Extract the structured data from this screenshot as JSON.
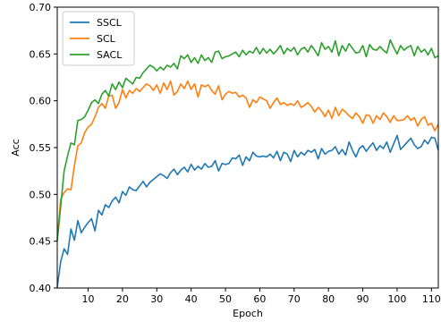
{
  "chart_data": {
    "type": "line",
    "title": "",
    "xlabel": "Epoch",
    "ylabel": "Acc",
    "xlim": [
      1,
      112
    ],
    "ylim": [
      0.4,
      0.7
    ],
    "xticks": [
      10,
      20,
      30,
      40,
      50,
      60,
      70,
      80,
      90,
      100,
      110
    ],
    "xtick_labels": [
      "10",
      "20",
      "30",
      "40",
      "50",
      "60",
      "70",
      "80",
      "90",
      "100",
      "110"
    ],
    "yticks": [
      0.4,
      0.45,
      0.5,
      0.55,
      0.6,
      0.65,
      0.7
    ],
    "ytick_labels": [
      "0.40",
      "0.45",
      "0.50",
      "0.55",
      "0.60",
      "0.65",
      "0.70"
    ],
    "grid": false,
    "legend_position": "top-left",
    "colors": {
      "SSCL": "#1f77b4",
      "SCL": "#ff7f0e",
      "SACL": "#2ca02c"
    },
    "x": [
      1,
      2,
      3,
      4,
      5,
      6,
      7,
      8,
      9,
      10,
      11,
      12,
      13,
      14,
      15,
      16,
      17,
      18,
      19,
      20,
      21,
      22,
      23,
      24,
      25,
      26,
      27,
      28,
      29,
      30,
      31,
      32,
      33,
      34,
      35,
      36,
      37,
      38,
      39,
      40,
      41,
      42,
      43,
      44,
      45,
      46,
      47,
      48,
      49,
      50,
      51,
      52,
      53,
      54,
      55,
      56,
      57,
      58,
      59,
      60,
      61,
      62,
      63,
      64,
      65,
      66,
      67,
      68,
      69,
      70,
      71,
      72,
      73,
      74,
      75,
      76,
      77,
      78,
      79,
      80,
      81,
      82,
      83,
      84,
      85,
      86,
      87,
      88,
      89,
      90,
      91,
      92,
      93,
      94,
      95,
      96,
      97,
      98,
      99,
      100,
      101,
      102,
      103,
      104,
      105,
      106,
      107,
      108,
      109,
      110,
      111,
      112
    ],
    "series": [
      {
        "name": "SSCL",
        "values": [
          0.401,
          0.428,
          0.442,
          0.436,
          0.463,
          0.451,
          0.472,
          0.459,
          0.465,
          0.47,
          0.474,
          0.461,
          0.483,
          0.478,
          0.489,
          0.486,
          0.493,
          0.497,
          0.491,
          0.503,
          0.499,
          0.508,
          0.505,
          0.504,
          0.509,
          0.514,
          0.508,
          0.513,
          0.516,
          0.519,
          0.522,
          0.52,
          0.517,
          0.523,
          0.527,
          0.521,
          0.526,
          0.529,
          0.524,
          0.532,
          0.526,
          0.53,
          0.527,
          0.533,
          0.529,
          0.53,
          0.536,
          0.525,
          0.533,
          0.532,
          0.533,
          0.539,
          0.538,
          0.542,
          0.531,
          0.54,
          0.536,
          0.545,
          0.541,
          0.54,
          0.541,
          0.54,
          0.543,
          0.539,
          0.546,
          0.536,
          0.545,
          0.543,
          0.535,
          0.547,
          0.54,
          0.545,
          0.542,
          0.547,
          0.545,
          0.548,
          0.538,
          0.549,
          0.543,
          0.546,
          0.547,
          0.551,
          0.543,
          0.548,
          0.542,
          0.556,
          0.547,
          0.54,
          0.549,
          0.552,
          0.546,
          0.551,
          0.555,
          0.547,
          0.552,
          0.549,
          0.556,
          0.545,
          0.554,
          0.563,
          0.548,
          0.552,
          0.556,
          0.56,
          0.553,
          0.549,
          0.551,
          0.558,
          0.554,
          0.561,
          0.56,
          0.547
        ]
      },
      {
        "name": "SCL",
        "values": [
          0.452,
          0.495,
          0.502,
          0.506,
          0.505,
          0.531,
          0.552,
          0.555,
          0.566,
          0.572,
          0.575,
          0.583,
          0.593,
          0.597,
          0.592,
          0.605,
          0.606,
          0.592,
          0.598,
          0.612,
          0.603,
          0.611,
          0.608,
          0.613,
          0.61,
          0.614,
          0.618,
          0.616,
          0.611,
          0.617,
          0.608,
          0.619,
          0.612,
          0.621,
          0.606,
          0.61,
          0.618,
          0.613,
          0.621,
          0.612,
          0.618,
          0.604,
          0.617,
          0.615,
          0.617,
          0.611,
          0.607,
          0.616,
          0.601,
          0.607,
          0.61,
          0.608,
          0.609,
          0.604,
          0.606,
          0.603,
          0.593,
          0.601,
          0.598,
          0.604,
          0.602,
          0.6,
          0.592,
          0.598,
          0.603,
          0.596,
          0.598,
          0.595,
          0.597,
          0.595,
          0.6,
          0.593,
          0.595,
          0.598,
          0.594,
          0.588,
          0.593,
          0.589,
          0.583,
          0.59,
          0.581,
          0.593,
          0.584,
          0.591,
          0.588,
          0.584,
          0.581,
          0.587,
          0.583,
          0.576,
          0.585,
          0.584,
          0.576,
          0.584,
          0.58,
          0.587,
          0.583,
          0.577,
          0.584,
          0.579,
          0.579,
          0.58,
          0.584,
          0.579,
          0.582,
          0.573,
          0.58,
          0.583,
          0.574,
          0.576,
          0.568,
          0.575
        ]
      },
      {
        "name": "SACL",
        "values": [
          0.45,
          0.487,
          0.525,
          0.541,
          0.555,
          0.553,
          0.579,
          0.58,
          0.583,
          0.59,
          0.598,
          0.601,
          0.597,
          0.607,
          0.611,
          0.605,
          0.618,
          0.612,
          0.62,
          0.614,
          0.624,
          0.621,
          0.618,
          0.625,
          0.624,
          0.63,
          0.634,
          0.638,
          0.636,
          0.632,
          0.636,
          0.633,
          0.638,
          0.636,
          0.64,
          0.634,
          0.648,
          0.645,
          0.649,
          0.641,
          0.646,
          0.64,
          0.649,
          0.643,
          0.646,
          0.641,
          0.652,
          0.653,
          0.645,
          0.647,
          0.648,
          0.65,
          0.652,
          0.647,
          0.654,
          0.649,
          0.653,
          0.651,
          0.657,
          0.65,
          0.656,
          0.651,
          0.655,
          0.65,
          0.654,
          0.659,
          0.65,
          0.656,
          0.653,
          0.657,
          0.649,
          0.655,
          0.657,
          0.652,
          0.659,
          0.654,
          0.648,
          0.662,
          0.655,
          0.658,
          0.652,
          0.664,
          0.648,
          0.659,
          0.653,
          0.661,
          0.656,
          0.651,
          0.652,
          0.659,
          0.647,
          0.66,
          0.655,
          0.654,
          0.658,
          0.654,
          0.651,
          0.665,
          0.657,
          0.65,
          0.659,
          0.654,
          0.657,
          0.659,
          0.648,
          0.658,
          0.652,
          0.655,
          0.649,
          0.656,
          0.646,
          0.648
        ]
      }
    ]
  }
}
